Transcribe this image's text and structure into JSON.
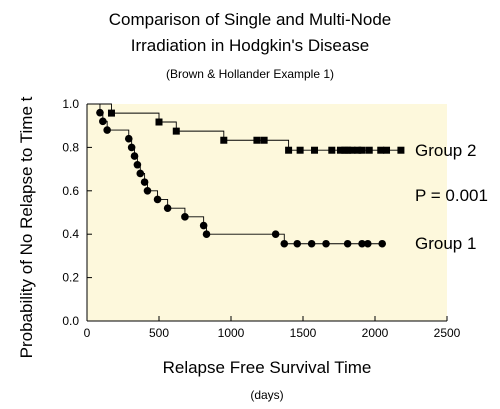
{
  "chart_data": {
    "type": "line",
    "title": "Comparison of Single and Multi-Node",
    "title_line2": "Irradiation in Hodgkin's Disease",
    "subtitle": "(Brown & Hollander Example 1)",
    "xlabel": "Relapse Free Survival Time",
    "xunit": "(days)",
    "ylabel": "Probability of No Relapse to Time t",
    "xlim": [
      0,
      2500
    ],
    "ylim": [
      0.0,
      1.0
    ],
    "xticks": [
      0,
      500,
      1000,
      1500,
      2000,
      2500
    ],
    "yticks": [
      "0.0",
      "0.2",
      "0.4",
      "0.6",
      "0.8",
      "1.0"
    ],
    "plot_background": "#fdf8dc",
    "series": [
      {
        "name": "Group 2",
        "marker": "square",
        "steps": [
          [
            0,
            1.0
          ],
          [
            170,
            0.958
          ],
          [
            500,
            0.917
          ],
          [
            620,
            0.875
          ],
          [
            950,
            0.833
          ],
          [
            1200,
            0.833
          ],
          [
            1400,
            0.787
          ],
          [
            2190,
            0.787
          ]
        ],
        "markers": [
          [
            170,
            0.958
          ],
          [
            500,
            0.917
          ],
          [
            620,
            0.875
          ],
          [
            950,
            0.833
          ],
          [
            1180,
            0.833
          ],
          [
            1230,
            0.833
          ],
          [
            1400,
            0.787
          ],
          [
            1480,
            0.787
          ],
          [
            1580,
            0.787
          ],
          [
            1700,
            0.787
          ],
          [
            1760,
            0.787
          ],
          [
            1790,
            0.787
          ],
          [
            1810,
            0.787
          ],
          [
            1840,
            0.787
          ],
          [
            1880,
            0.787
          ],
          [
            1910,
            0.787
          ],
          [
            1960,
            0.787
          ],
          [
            2040,
            0.787
          ],
          [
            2080,
            0.787
          ],
          [
            2180,
            0.787
          ]
        ]
      },
      {
        "name": "Group 1",
        "marker": "circle",
        "steps": [
          [
            0,
            1.0
          ],
          [
            90,
            0.96
          ],
          [
            110,
            0.92
          ],
          [
            140,
            0.88
          ],
          [
            290,
            0.84
          ],
          [
            310,
            0.8
          ],
          [
            330,
            0.76
          ],
          [
            350,
            0.72
          ],
          [
            370,
            0.68
          ],
          [
            400,
            0.64
          ],
          [
            420,
            0.6
          ],
          [
            490,
            0.56
          ],
          [
            560,
            0.52
          ],
          [
            680,
            0.48
          ],
          [
            810,
            0.44
          ],
          [
            830,
            0.4
          ],
          [
            1310,
            0.4
          ],
          [
            1370,
            0.356
          ],
          [
            2050,
            0.356
          ]
        ],
        "markers": [
          [
            90,
            0.96
          ],
          [
            110,
            0.92
          ],
          [
            140,
            0.88
          ],
          [
            290,
            0.84
          ],
          [
            310,
            0.8
          ],
          [
            330,
            0.76
          ],
          [
            350,
            0.72
          ],
          [
            370,
            0.68
          ],
          [
            400,
            0.64
          ],
          [
            420,
            0.6
          ],
          [
            490,
            0.56
          ],
          [
            560,
            0.52
          ],
          [
            680,
            0.48
          ],
          [
            810,
            0.44
          ],
          [
            830,
            0.4
          ],
          [
            1310,
            0.4
          ],
          [
            1370,
            0.356
          ],
          [
            1460,
            0.356
          ],
          [
            1560,
            0.356
          ],
          [
            1660,
            0.356
          ],
          [
            1810,
            0.356
          ],
          [
            1910,
            0.356
          ],
          [
            1950,
            0.356
          ],
          [
            2050,
            0.356
          ]
        ]
      }
    ],
    "annotations": [
      {
        "text": "Group 2",
        "x": 2550,
        "y": 0.787
      },
      {
        "text": "P = 0.001",
        "x": 2550,
        "y": 0.58
      },
      {
        "text": "Group 1",
        "x": 2550,
        "y": 0.36
      }
    ]
  }
}
